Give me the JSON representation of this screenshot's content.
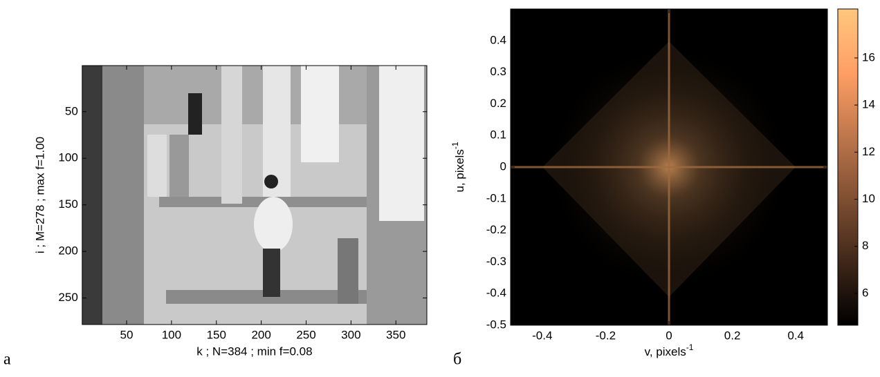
{
  "chart_data": [
    {
      "type": "image",
      "panel_label": "а",
      "xlabel": "k ; N=384 ; min f=0.08",
      "ylabel": "i ; M=278 ; max f=1.00",
      "xlim": [
        0.5,
        384.5
      ],
      "ylim": [
        0.5,
        278.5
      ],
      "y_reversed": true,
      "xticks": [
        50,
        100,
        150,
        200,
        250,
        300,
        350
      ],
      "yticks": [
        50,
        100,
        150,
        200,
        250
      ]
    },
    {
      "type": "heatmap",
      "panel_label": "б",
      "xlabel": {
        "text": "v, pixels",
        "sup": "-1"
      },
      "ylabel": {
        "text": "u, pixels",
        "sup": "-1"
      },
      "xlim": [
        -0.5,
        0.5
      ],
      "ylim": [
        -0.5,
        0.5
      ],
      "xticks": [
        -0.4,
        -0.2,
        0,
        0.2,
        0.4
      ],
      "yticks": [
        -0.5,
        -0.4,
        -0.3,
        -0.2,
        -0.1,
        0,
        0.1,
        0.2,
        0.3,
        0.4
      ],
      "colormap": "copper",
      "clim": [
        4.65,
        18.08
      ],
      "cticks": [
        6,
        8,
        10,
        12,
        14,
        16
      ]
    }
  ]
}
